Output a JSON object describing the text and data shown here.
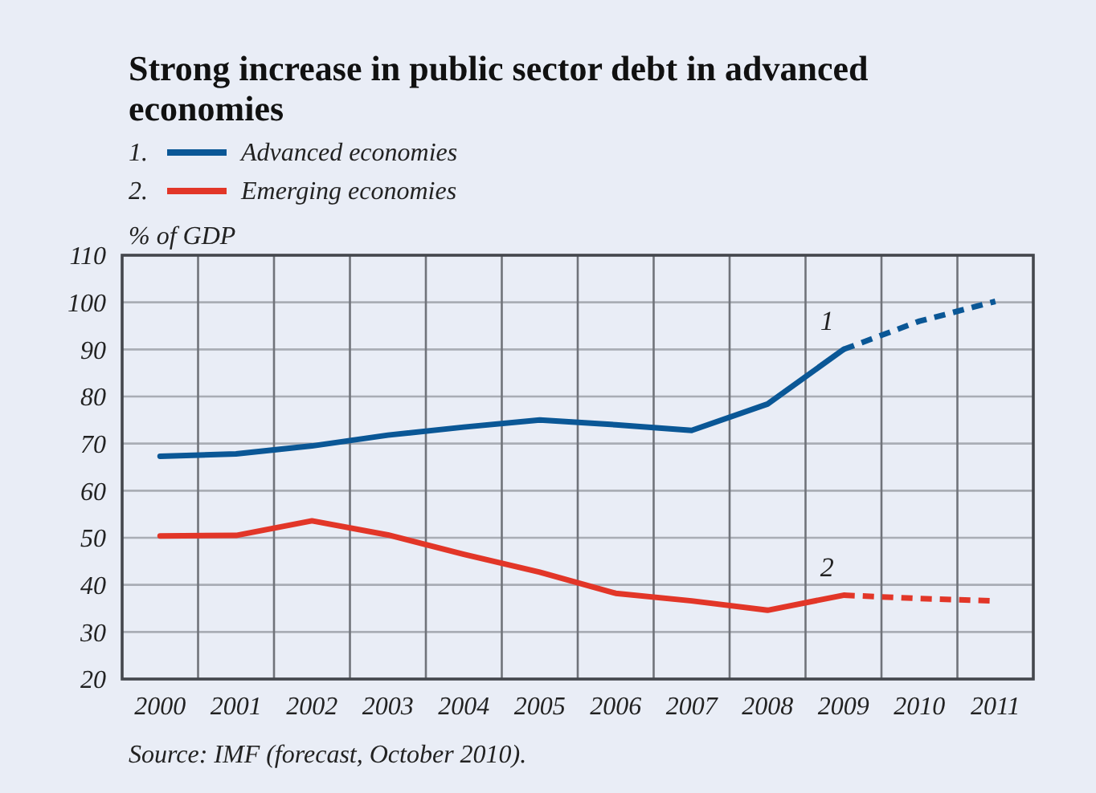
{
  "chart_data": {
    "type": "line",
    "title": "Strong increase in public sector debt in advanced economies",
    "ylabel": "% of GDP",
    "categories": [
      "2000",
      "2001",
      "2002",
      "2003",
      "2004",
      "2005",
      "2006",
      "2007",
      "2008",
      "2009",
      "2010",
      "2011"
    ],
    "series": [
      {
        "name": "Advanced economies",
        "color": "#0a5796",
        "line_style": "solid",
        "values": [
          67.3,
          67.8,
          69.5,
          71.8,
          73.5,
          75,
          74,
          72.8,
          78.4,
          90,
          null,
          null
        ]
      },
      {
        "name": "Emerging economies",
        "color": "#e23628",
        "line_style": "solid",
        "values": [
          50.4,
          50.5,
          53.6,
          50.6,
          46.5,
          42.7,
          38.2,
          36.6,
          34.6,
          37.8,
          null,
          null
        ]
      },
      {
        "color": "#0a5796",
        "line_style": "dashed",
        "values": [
          null,
          null,
          null,
          null,
          null,
          null,
          null,
          null,
          null,
          90,
          96,
          100.2
        ]
      },
      {
        "color": "#e23628",
        "line_style": "dashed",
        "values": [
          null,
          null,
          null,
          null,
          null,
          null,
          null,
          null,
          null,
          37.8,
          37.1,
          36.6
        ]
      }
    ],
    "ylim": [
      20,
      110
    ],
    "yticks": [
      20,
      30,
      40,
      50,
      60,
      70,
      80,
      90,
      100,
      110
    ],
    "grid": true,
    "legend": "top left",
    "annotations": [
      {
        "text": "1",
        "x": "2009",
        "y": 90
      },
      {
        "text": "2",
        "x": "2009",
        "y": 37.8
      },
      "1.",
      "2.",
      "Source: IMF (forecast, October 2010)."
    ]
  }
}
